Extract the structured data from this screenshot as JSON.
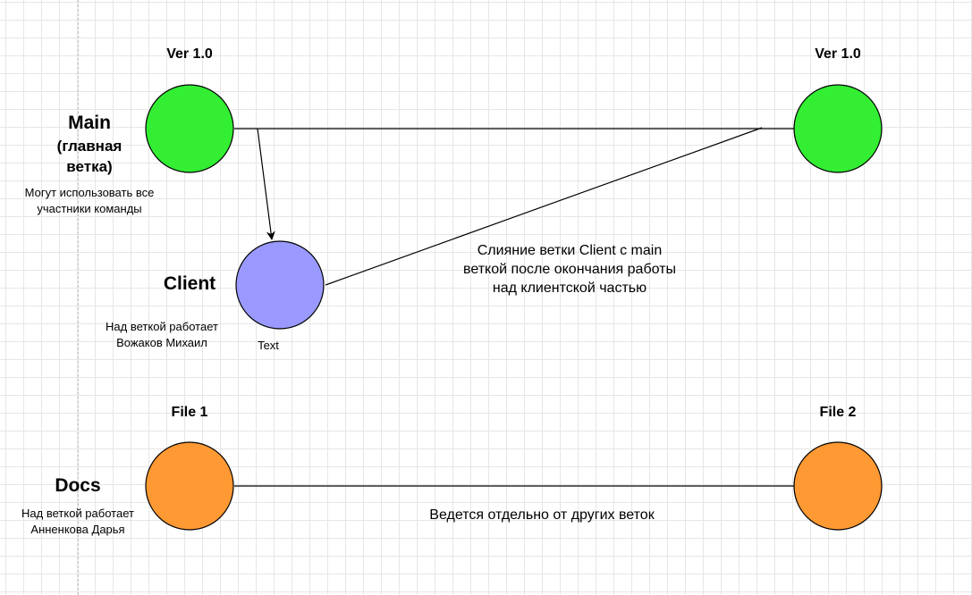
{
  "main": {
    "name": "Main",
    "subtitle_line1": "(главная",
    "subtitle_line2": "ветка)",
    "note_line1": "Могут использовать все",
    "note_line2": "участники команды",
    "version_left": "Ver 1.0",
    "version_right": "Ver 1.0",
    "color": "#33ee33"
  },
  "client": {
    "name": "Client",
    "note_line1": "Над веткой работает",
    "note_line2": "Вожаков Михаил",
    "text_label": "Text",
    "color": "#9999ff"
  },
  "merge": {
    "line1": "Слияние ветки Client с main",
    "line2": "веткой после окончания работы",
    "line3": "над клиентской частью"
  },
  "docs": {
    "name": "Docs",
    "note_line1": "Над веткой работает",
    "note_line2": "Анненкова Дарья",
    "file_left": "File 1",
    "file_right": "File 2",
    "description": "Ведется отдельно от других веток",
    "color": "#ff9933"
  }
}
